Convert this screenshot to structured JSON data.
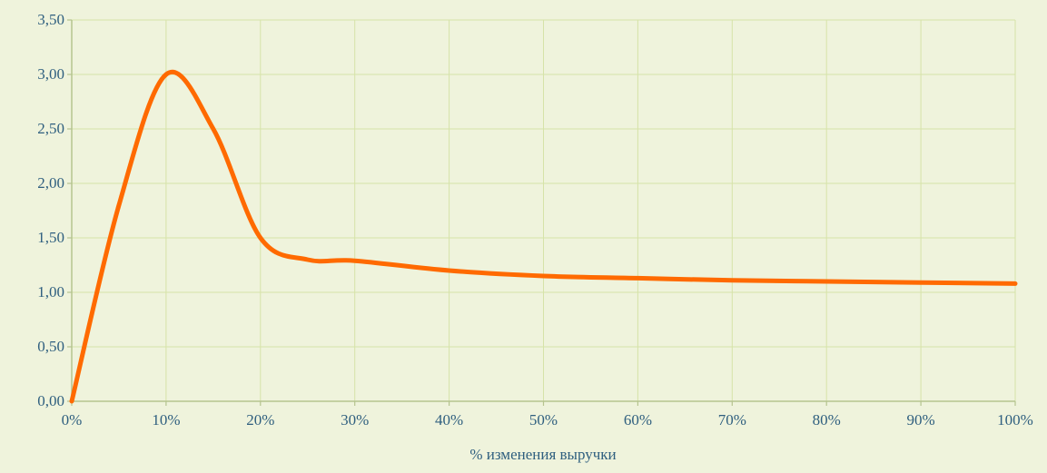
{
  "chart_data": {
    "type": "line",
    "title": "",
    "xlabel": "% изменения выручки",
    "ylabel": "",
    "xlim": [
      0,
      100
    ],
    "ylim": [
      0,
      3.5
    ],
    "x_ticks": [
      0,
      10,
      20,
      30,
      40,
      50,
      60,
      70,
      80,
      90,
      100
    ],
    "x_tick_labels": [
      "0%",
      "10%",
      "20%",
      "30%",
      "40%",
      "50%",
      "60%",
      "70%",
      "80%",
      "90%",
      "100%"
    ],
    "y_ticks": [
      0,
      0.5,
      1.0,
      1.5,
      2.0,
      2.5,
      3.0,
      3.5
    ],
    "y_tick_labels": [
      "0,00",
      "0,50",
      "1,00",
      "1,50",
      "2,00",
      "2,50",
      "3,00",
      "3,50"
    ],
    "grid": true,
    "legend": "none",
    "series": [
      {
        "color": "#ff6a00",
        "x": [
          0,
          5,
          10,
          15,
          20,
          25,
          30,
          40,
          50,
          60,
          70,
          80,
          90,
          100
        ],
        "y": [
          0,
          1.8,
          3.0,
          2.5,
          1.5,
          1.3,
          1.29,
          1.2,
          1.15,
          1.13,
          1.11,
          1.1,
          1.09,
          1.08
        ]
      }
    ]
  },
  "colors": {
    "background": "#eff3dc",
    "grid": "#d6e3a8",
    "axis": "#b5c48f",
    "line": "#ff6a00",
    "text": "#2f5f7f"
  }
}
